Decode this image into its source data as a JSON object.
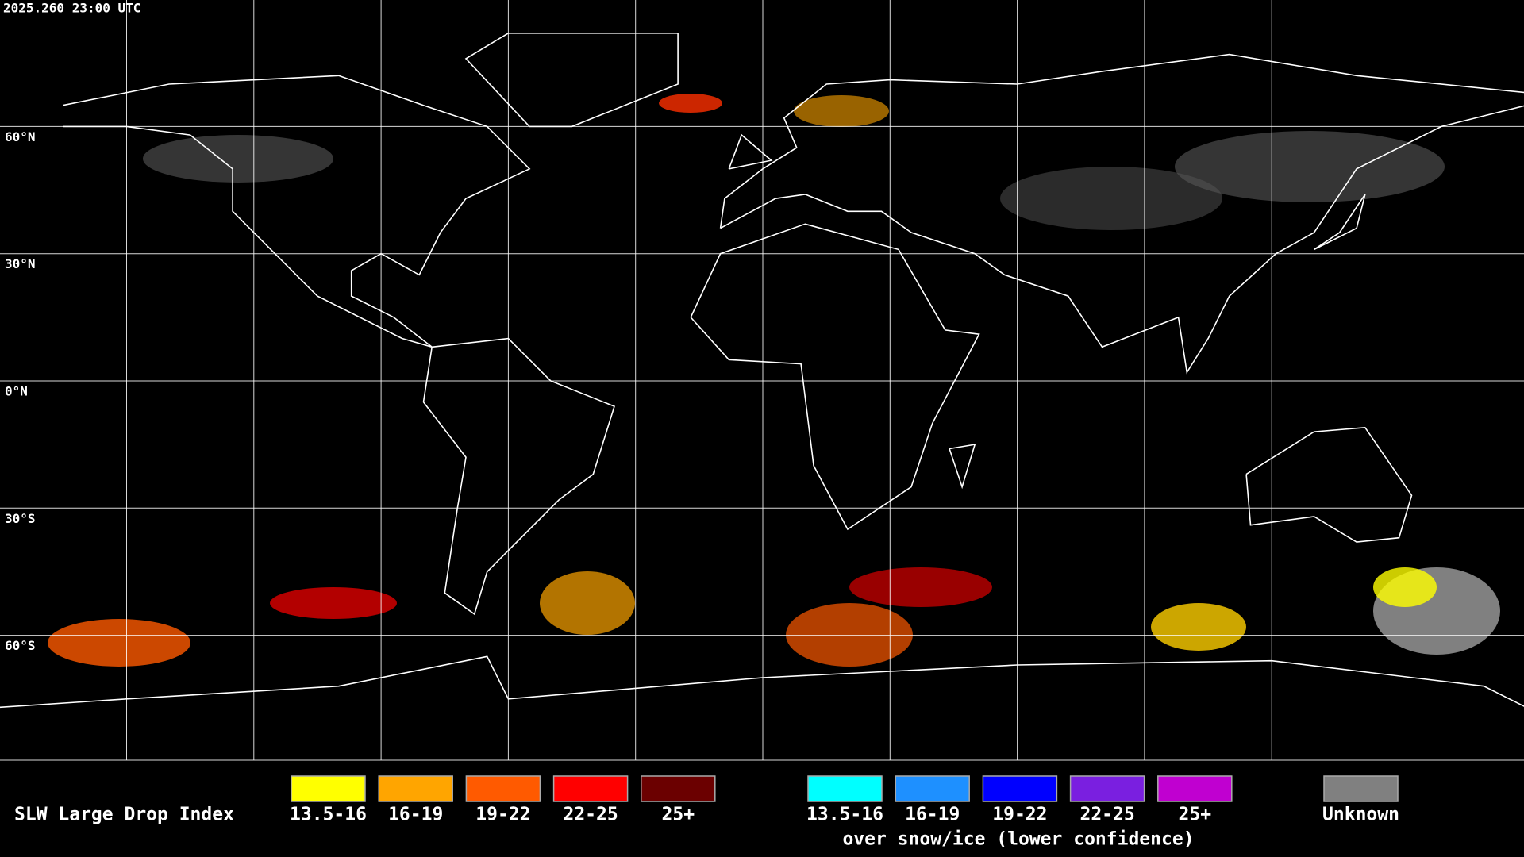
{
  "timestamp": "2025.260 23:00 UTC",
  "latitude_labels": [
    "60°N",
    "30°N",
    "0°N",
    "30°S",
    "60°S"
  ],
  "legend": {
    "title": "SLW Large Drop Index",
    "items": [
      {
        "label": "13.5-16",
        "color": "#ffff00"
      },
      {
        "label": "16-19",
        "color": "#ffa500"
      },
      {
        "label": "19-22",
        "color": "#ff5a00"
      },
      {
        "label": "22-25",
        "color": "#ff0000"
      },
      {
        "label": "25+",
        "color": "#6b0000"
      }
    ],
    "snow_items": [
      {
        "label": "13.5-16",
        "color": "#00ffff"
      },
      {
        "label": "16-19",
        "color": "#1e90ff"
      },
      {
        "label": "19-22",
        "color": "#0000ff"
      },
      {
        "label": "22-25",
        "color": "#7a1fe0"
      },
      {
        "label": "25+",
        "color": "#c000d0"
      }
    ],
    "snow_caption": "over snow/ice (lower confidence)",
    "unknown": {
      "label": "Unknown",
      "color": "#808080"
    }
  }
}
